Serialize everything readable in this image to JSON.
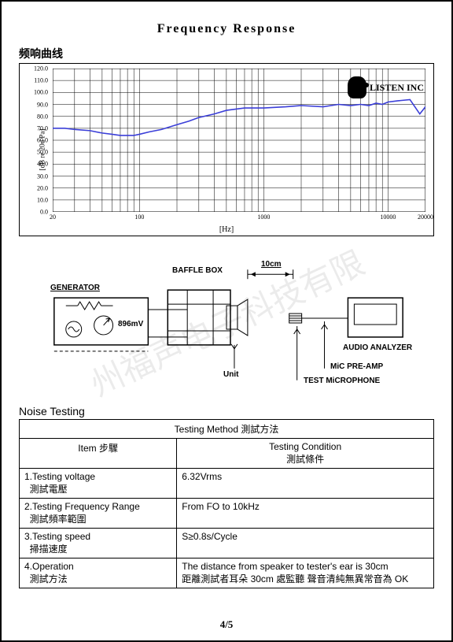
{
  "title": "Frequency    Response",
  "subtitle": "频响曲线",
  "chart": {
    "type": "line",
    "ylabel": "[dB re 20u Pa]",
    "xlabel": "[Hz]",
    "yticks": [
      0,
      10,
      20,
      30,
      40,
      50,
      60,
      70,
      80,
      90,
      100,
      110,
      120
    ],
    "xticks": [
      {
        "v": 20,
        "label": "20"
      },
      {
        "v": 100,
        "label": "100"
      },
      {
        "v": 1000,
        "label": "1000"
      },
      {
        "v": 10000,
        "label": "10000"
      },
      {
        "v": 20000,
        "label": "20000"
      }
    ],
    "xlim": [
      20,
      20000
    ],
    "ylim": [
      0,
      120
    ],
    "xscale": "log",
    "line_color": "#3b3fd8",
    "grid_color": "#000000",
    "background_color": "#ffffff",
    "line_width": 1.6,
    "data_hz": [
      20,
      25,
      30,
      40,
      50,
      60,
      70,
      80,
      90,
      100,
      120,
      150,
      200,
      250,
      300,
      400,
      500,
      700,
      1000,
      1500,
      2000,
      3000,
      4000,
      5000,
      6000,
      7000,
      8000,
      9000,
      10000,
      12000,
      15000,
      18000,
      20000
    ],
    "data_db": [
      70,
      70,
      69,
      68,
      66,
      65,
      64,
      64,
      64,
      65,
      67,
      69,
      73,
      76,
      79,
      82,
      85,
      87,
      87,
      88,
      89,
      88,
      90,
      89,
      90,
      89,
      91,
      90,
      92,
      93,
      94,
      82,
      88
    ]
  },
  "logo_text": "LISTEN INC",
  "diagram": {
    "baffle_label": "BAFFLE BOX",
    "distance_label": "10cm",
    "generator_label": "GENERATOR",
    "voltage_label": "896mV",
    "unit_label": "Unit",
    "analyzer_label": "AUDIO ANALYZER",
    "preamp_label": "MiC PRE-AMP",
    "mic_label": "TEST MiCROPHONE"
  },
  "watermark": "州福声电子科技有限",
  "noise_title": "Noise  Testing",
  "noise_table": {
    "header_full": "Testing Method 測試方法",
    "col1_header": "Item 步驟",
    "col2_header_line1": "Testing Condition",
    "col2_header_line2": "測試條件",
    "rows": [
      {
        "item_en": "1.Testing  voltage",
        "item_cn": "測試電壓",
        "cond": "6.32Vrms"
      },
      {
        "item_en": "2.Testing Frequency Range",
        "item_cn": "測試頻率範圍",
        "cond": "From FO to 10kHz"
      },
      {
        "item_en": "3.Testing speed",
        "item_cn": "掃描速度",
        "cond": "S≥0.8s/Cycle"
      },
      {
        "item_en": "4.Operation",
        "item_cn": "測試方法",
        "cond": "The distance from speaker to tester's ear is 30cm\n距離測試者耳朵 30cm 處監聽 聲音清純無異常音為 OK"
      }
    ]
  },
  "page_number": "4/5"
}
